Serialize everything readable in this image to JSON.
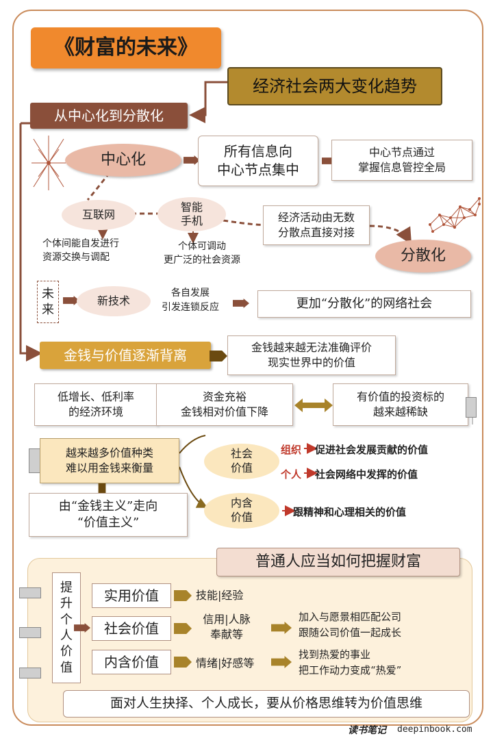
{
  "title": "《财富的未来》",
  "trends": "经济社会两大变化趋势",
  "section1": {
    "label": "从中心化到分散化",
    "centralized": "中心化",
    "info_to_center": "所有信息向\n中心节点集中",
    "center_control": "中心节点通过\n掌握信息管控全局",
    "internet": "互联网",
    "smartphone": "智能\n手机",
    "internet_note": "个体间能自发进行\n资源交换与调配",
    "phone_note": "个体可调动\n更广泛的社会资源",
    "econ_direct": "经济活动由无数\n分散点直接对接",
    "decentralized": "分散化",
    "future": "未\n来",
    "newtech": "新技术",
    "chain": "各自发展\n引发连锁反应",
    "network": "更加“分散化”的网络社会"
  },
  "section2": {
    "label": "金钱与价值逐渐背离",
    "cannot_eval": "金钱越来越无法准确评价\n现实世界中的价值",
    "low_growth": "低增长、低利率\n的经济环境",
    "ample_funds": "资金充裕\n金钱相对价值下降",
    "scarce": "有价值的投资标的\n越来越稀缺",
    "more_values": "越来越多价值种类\n难以用金钱来衡量",
    "moneyism": "由“金钱主义”走向\n“价值主义”",
    "social_value": "社会\n价值",
    "intrinsic_value": "内含\n价值",
    "org_label": "组织",
    "org_desc": "促进社会发展贡献的价值",
    "person_label": "个人",
    "person_desc": "社会网络中发挥的价值",
    "intrinsic_desc": "跟精神和心理相关的价值"
  },
  "section3": {
    "label": "普通人应当如何把握财富",
    "improve": "提\n升\n个\n人\n价\n值",
    "practical": "实用价值",
    "practical_items": "技能|经验",
    "social": "社会价值",
    "social_items": "信用|人脉\n奉献等",
    "social_action": "加入与愿景相匹配公司\n跟随公司价值一起成长",
    "intrinsic": "内含价值",
    "intrinsic_items": "情绪|好感等",
    "intrinsic_action": "找到热爱的事业\n把工作动力变成“热爱”",
    "conclusion": "面对人生抉择、个人成长，要从价格思维转为价值思维"
  },
  "footer": {
    "brand": "读书笔记",
    "site": "deepinbook.com"
  },
  "colors": {
    "brown": "#8a4f3a",
    "orange": "#f0892d",
    "gold": "#a8832a",
    "pink": "#e9b9a6"
  }
}
